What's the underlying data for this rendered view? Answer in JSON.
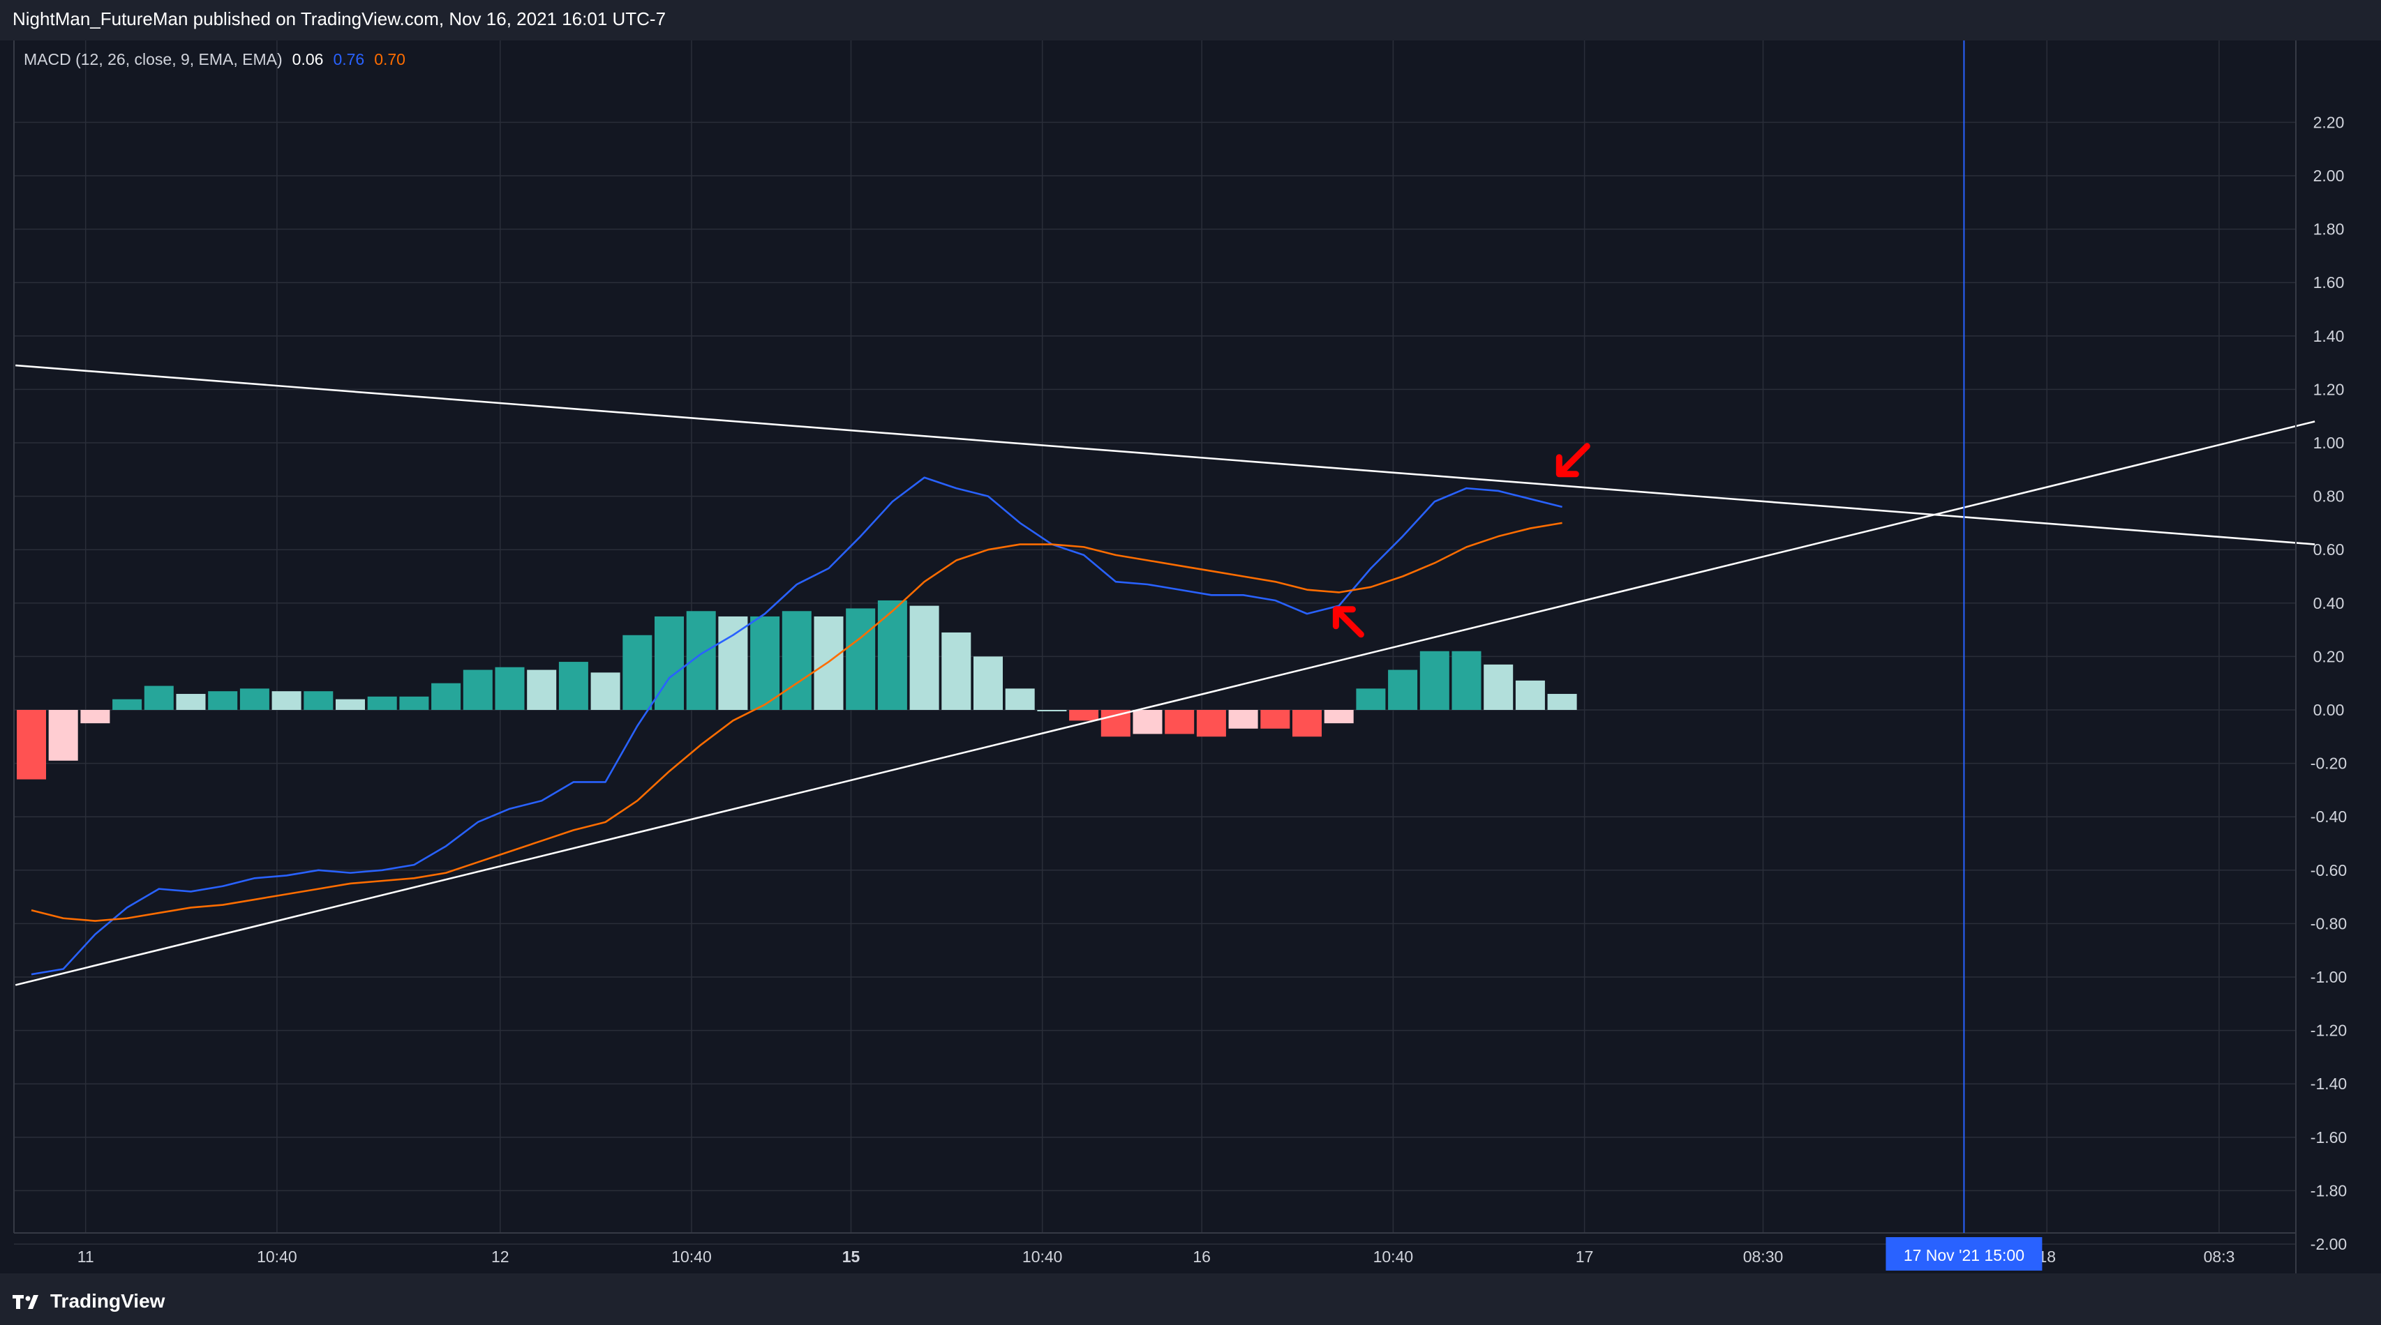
{
  "header": {
    "publisher_line": "NightMan_FutureMan published on TradingView.com, Nov 16, 2021 16:01 UTC-7"
  },
  "footer": {
    "brand_label": "TradingView"
  },
  "colors": {
    "background": "#131722",
    "panel": "#1e222d",
    "grid": "#2a2e39",
    "macd_line": "#2962ff",
    "signal_line": "#ff6d00",
    "hist_pos_strong": "#26a69a",
    "hist_pos_weak": "#b2dfdb",
    "hist_neg_strong": "#ff5252",
    "hist_neg_weak": "#ffcdd2",
    "trendline": "#ffffff",
    "annotation_arrow": "#ff0000",
    "crosshair": "#2962ff"
  },
  "chart_data": {
    "type": "line",
    "title": "",
    "indicator_label": "MACD (12, 26, close, 9, EMA, EMA)",
    "legend_values": [
      {
        "name": "Histogram",
        "value": "0.06",
        "color": "#ffffff"
      },
      {
        "name": "MACD",
        "value": "0.76",
        "color": "#2962ff"
      },
      {
        "name": "Signal",
        "value": "0.70",
        "color": "#ff6d00"
      }
    ],
    "ylim": [
      -2.2,
      2.3
    ],
    "y_ticks": [
      "2.20",
      "2.00",
      "1.80",
      "1.60",
      "1.40",
      "1.20",
      "1.00",
      "0.80",
      "0.60",
      "0.40",
      "0.20",
      "0.00",
      "-0.20",
      "-0.40",
      "-0.60",
      "-0.80",
      "-1.00",
      "-1.20",
      "-1.40",
      "-1.60",
      "-1.80",
      "-2.00"
    ],
    "x_ticks": [
      {
        "label": "11",
        "bold": false,
        "bar": 1.7
      },
      {
        "label": "10:40",
        "bold": false,
        "bar": 7.7
      },
      {
        "label": "12",
        "bold": false,
        "bar": 14.7
      },
      {
        "label": "10:40",
        "bold": false,
        "bar": 20.7
      },
      {
        "label": "15",
        "bold": true,
        "bar": 25.7
      },
      {
        "label": "10:40",
        "bold": false,
        "bar": 31.7
      },
      {
        "label": "16",
        "bold": false,
        "bar": 36.7
      },
      {
        "label": "10:40",
        "bold": false,
        "bar": 42.7
      },
      {
        "label": "17",
        "bold": false,
        "bar": 48.7
      },
      {
        "label": "08:30",
        "bold": false,
        "bar": 54.3
      },
      {
        "label": "18",
        "bold": false,
        "bar": 63.2
      },
      {
        "label": "08:3",
        "bold": false,
        "bar": 68.6
      }
    ],
    "crosshair": {
      "label": "17 Nov '21   15:00",
      "bar": 60.6
    },
    "series": [
      {
        "name": "Histogram",
        "kind": "histogram",
        "values": [
          -0.26,
          -0.19,
          -0.05,
          0.04,
          0.09,
          0.06,
          0.07,
          0.08,
          0.07,
          0.07,
          0.04,
          0.05,
          0.05,
          0.1,
          0.15,
          0.16,
          0.15,
          0.18,
          0.14,
          0.28,
          0.35,
          0.37,
          0.35,
          0.35,
          0.37,
          0.35,
          0.38,
          0.41,
          0.39,
          0.29,
          0.2,
          0.08,
          0.0,
          -0.04,
          -0.1,
          -0.09,
          -0.09,
          -0.1,
          -0.07,
          -0.07,
          -0.1,
          -0.05,
          0.08,
          0.15,
          0.22,
          0.22,
          0.17,
          0.11,
          0.06
        ]
      },
      {
        "name": "MACD",
        "kind": "line",
        "values": [
          -0.99,
          -0.97,
          -0.84,
          -0.74,
          -0.67,
          -0.68,
          -0.66,
          -0.63,
          -0.62,
          -0.6,
          -0.61,
          -0.6,
          -0.58,
          -0.51,
          -0.42,
          -0.37,
          -0.34,
          -0.27,
          -0.27,
          -0.06,
          0.12,
          0.21,
          0.28,
          0.36,
          0.47,
          0.53,
          0.65,
          0.78,
          0.87,
          0.83,
          0.8,
          0.7,
          0.62,
          0.58,
          0.48,
          0.47,
          0.45,
          0.43,
          0.43,
          0.41,
          0.36,
          0.39,
          0.53,
          0.65,
          0.78,
          0.83,
          0.82,
          0.79,
          0.76
        ]
      },
      {
        "name": "Signal",
        "kind": "line",
        "values": [
          -0.75,
          -0.78,
          -0.79,
          -0.78,
          -0.76,
          -0.74,
          -0.73,
          -0.71,
          -0.69,
          -0.67,
          -0.65,
          -0.64,
          -0.63,
          -0.61,
          -0.57,
          -0.53,
          -0.49,
          -0.45,
          -0.42,
          -0.34,
          -0.23,
          -0.13,
          -0.04,
          0.02,
          0.1,
          0.18,
          0.27,
          0.37,
          0.48,
          0.56,
          0.6,
          0.62,
          0.62,
          0.61,
          0.58,
          0.56,
          0.54,
          0.52,
          0.5,
          0.48,
          0.45,
          0.44,
          0.46,
          0.5,
          0.55,
          0.61,
          0.65,
          0.68,
          0.7
        ]
      }
    ],
    "trendlines": [
      {
        "name": "descending-resistance",
        "from": {
          "bar": -0.5,
          "value": 1.29
        },
        "to": {
          "bar": 71.6,
          "value": 0.62
        }
      },
      {
        "name": "ascending-support",
        "from": {
          "bar": -0.5,
          "value": -1.03
        },
        "to": {
          "bar": 71.6,
          "value": 1.08
        }
      }
    ],
    "annotations": [
      {
        "name": "arrow-down-left",
        "bar": 48.3,
        "value": 0.93
      },
      {
        "name": "arrow-up-left",
        "bar": 41.3,
        "value": 0.34
      }
    ],
    "grid": true,
    "legend_position": "top-left"
  }
}
